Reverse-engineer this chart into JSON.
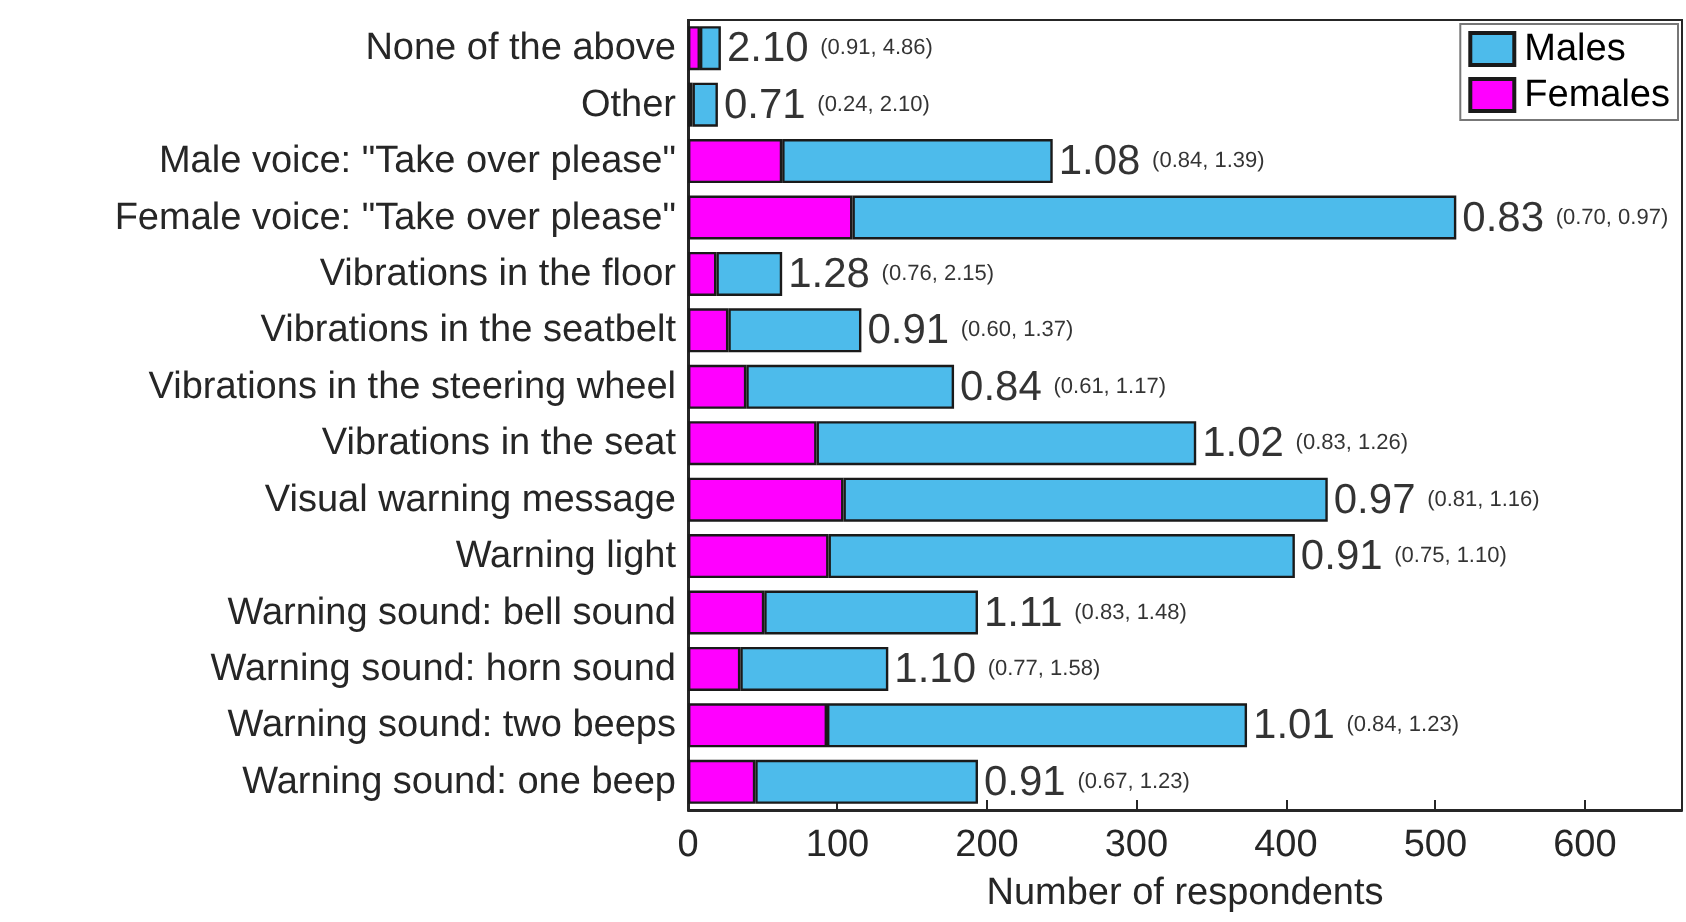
{
  "chart_data": {
    "type": "bar",
    "orientation": "horizontal",
    "stacked": true,
    "xlabel": "Number of respondents",
    "categories": [
      "None of the above",
      "Other",
      "Male voice: \"Take over please\"",
      "Female voice: \"Take over please\"",
      "Vibrations in the floor",
      "Vibrations in the seatbelt",
      "Vibrations in the steering wheel",
      "Vibrations in the seat",
      "Visual warning message",
      "Warning light",
      "Warning sound: bell sound",
      "Warning sound: horn sound",
      "Warning sound: two beeps",
      "Warning sound: one beep"
    ],
    "series": [
      {
        "name": "Females",
        "color": "#ff00ff",
        "values": [
          8,
          3,
          63,
          110,
          19,
          27,
          39,
          86,
          104,
          94,
          51,
          35,
          93,
          45
        ]
      },
      {
        "name": "Males",
        "color": "#4dbbeb",
        "values": [
          14,
          17,
          181,
          404,
          44,
          89,
          139,
          254,
          324,
          312,
          143,
          99,
          281,
          149
        ]
      }
    ],
    "annotations": [
      {
        "text": "2.10 (0.91, 4.86)",
        "x": 22,
        "y": "None of the above"
      },
      {
        "text": "0.71 (0.24, 2.10)",
        "x": 20,
        "y": "Other"
      },
      {
        "text": "1.08 (0.84, 1.39)",
        "x": 244,
        "y": "Male voice: \"Take over please\""
      },
      {
        "text": "0.83 (0.70, 0.97)",
        "x": 514,
        "y": "Female voice: \"Take over please\""
      },
      {
        "text": "1.28 (0.76, 2.15)",
        "x": 63,
        "y": "Vibrations in the floor"
      },
      {
        "text": "0.91 (0.60, 1.37)",
        "x": 116,
        "y": "Vibrations in the seatbelt"
      },
      {
        "text": "0.84 (0.61, 1.17)",
        "x": 178,
        "y": "Vibrations in the steering wheel"
      },
      {
        "text": "1.02 (0.83, 1.26)",
        "x": 340,
        "y": "Vibrations in the seat"
      },
      {
        "text": "0.97 (0.81, 1.16)",
        "x": 428,
        "y": "Visual warning message"
      },
      {
        "text": "0.91 (0.75, 1.10)",
        "x": 406,
        "y": "Warning light"
      },
      {
        "text": "1.11 (0.83, 1.48)",
        "x": 194,
        "y": "Warning sound: bell sound"
      },
      {
        "text": "1.10 (0.77, 1.58)",
        "x": 134,
        "y": "Warning sound: horn sound"
      },
      {
        "text": "1.01 (0.84, 1.23)",
        "x": 374,
        "y": "Warning sound: two beeps"
      },
      {
        "text": "0.91 (0.67, 1.23)",
        "x": 194,
        "y": "Warning sound: one beep"
      }
    ],
    "xlim": [
      0,
      665
    ],
    "xticks": [
      0,
      100,
      200,
      300,
      400,
      500,
      600
    ],
    "grid": false,
    "legend": "top right"
  }
}
